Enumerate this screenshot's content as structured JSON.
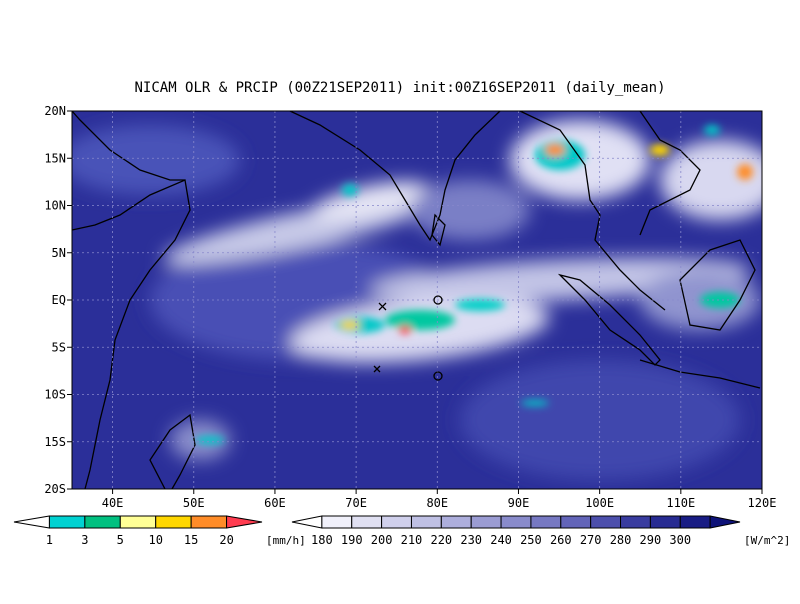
{
  "header": {
    "title": "NICAM OLR & PRCIP (00Z21SEP2011) init:00Z16SEP2011 (daily_mean)"
  },
  "map": {
    "lat_labels": [
      "20N",
      "15N",
      "10N",
      "5N",
      "EQ",
      "5S",
      "10S",
      "15S",
      "20S"
    ],
    "lon_labels": [
      "40E",
      "50E",
      "60E",
      "70E",
      "80E",
      "90E",
      "100E",
      "110E",
      "120E"
    ]
  },
  "precip_colorbar": {
    "labels": [
      "1",
      "3",
      "5",
      "10",
      "15",
      "20"
    ],
    "unit": "[mm/h]"
  },
  "olr_colorbar": {
    "labels": [
      "180",
      "190",
      "200",
      "210",
      "220",
      "230",
      "240",
      "250",
      "260",
      "270",
      "280",
      "290",
      "300"
    ],
    "unit": "[W/m^2]"
  }
}
